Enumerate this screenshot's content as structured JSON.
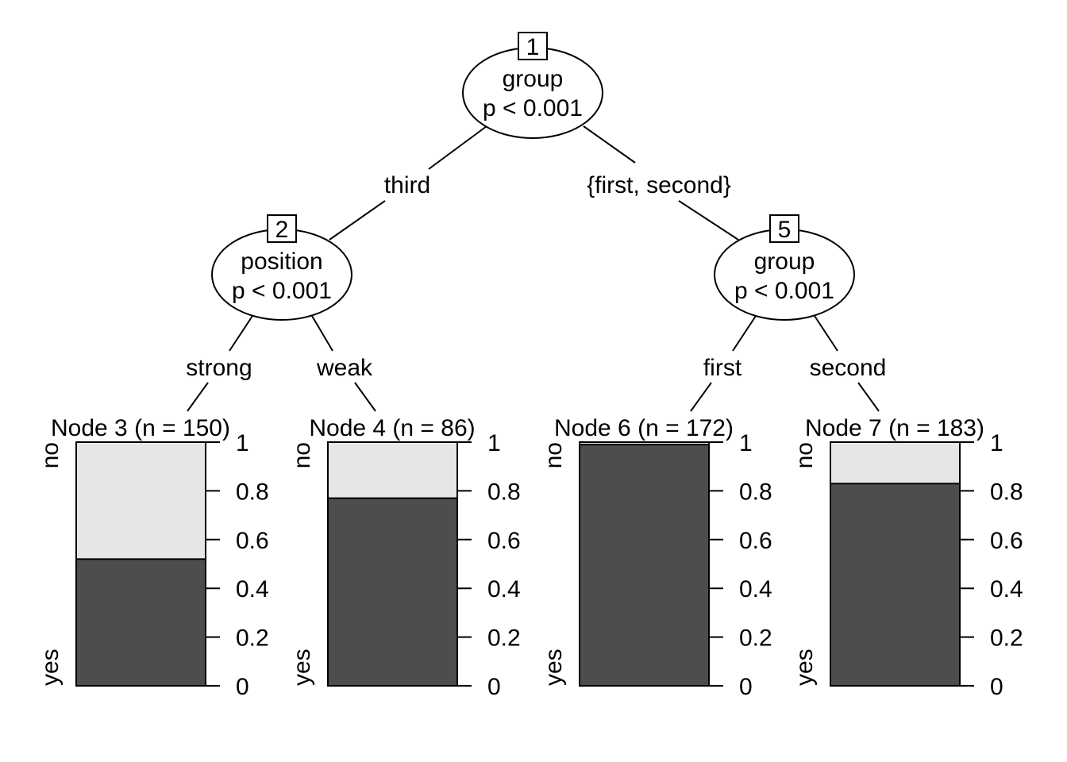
{
  "inner_nodes": [
    {
      "id": "1",
      "variable": "group",
      "p_value": "p < 0.001"
    },
    {
      "id": "2",
      "variable": "position",
      "p_value": "p < 0.001"
    },
    {
      "id": "5",
      "variable": "group",
      "p_value": "p < 0.001"
    }
  ],
  "edge_labels": [
    "third",
    "{first, second}",
    "strong",
    "weak",
    "first",
    "second"
  ],
  "terminal_nodes": [
    {
      "title": "Node 3 (n = 150)",
      "yes": 0.52,
      "no": 0.48
    },
    {
      "title": "Node 4 (n = 86)",
      "yes": 0.77,
      "no": 0.23
    },
    {
      "title": "Node 6 (n = 172)",
      "yes": 0.99,
      "no": 0.01
    },
    {
      "title": "Node 7 (n = 183)",
      "yes": 0.83,
      "no": 0.17
    }
  ],
  "bar_axis": {
    "ticks": [
      "0",
      "0.2",
      "0.4",
      "0.6",
      "0.8",
      "1"
    ],
    "top_label": "no",
    "bottom_label": "yes"
  },
  "colors": {
    "yes": "#4d4d4d",
    "no": "#e6e6e6"
  }
}
